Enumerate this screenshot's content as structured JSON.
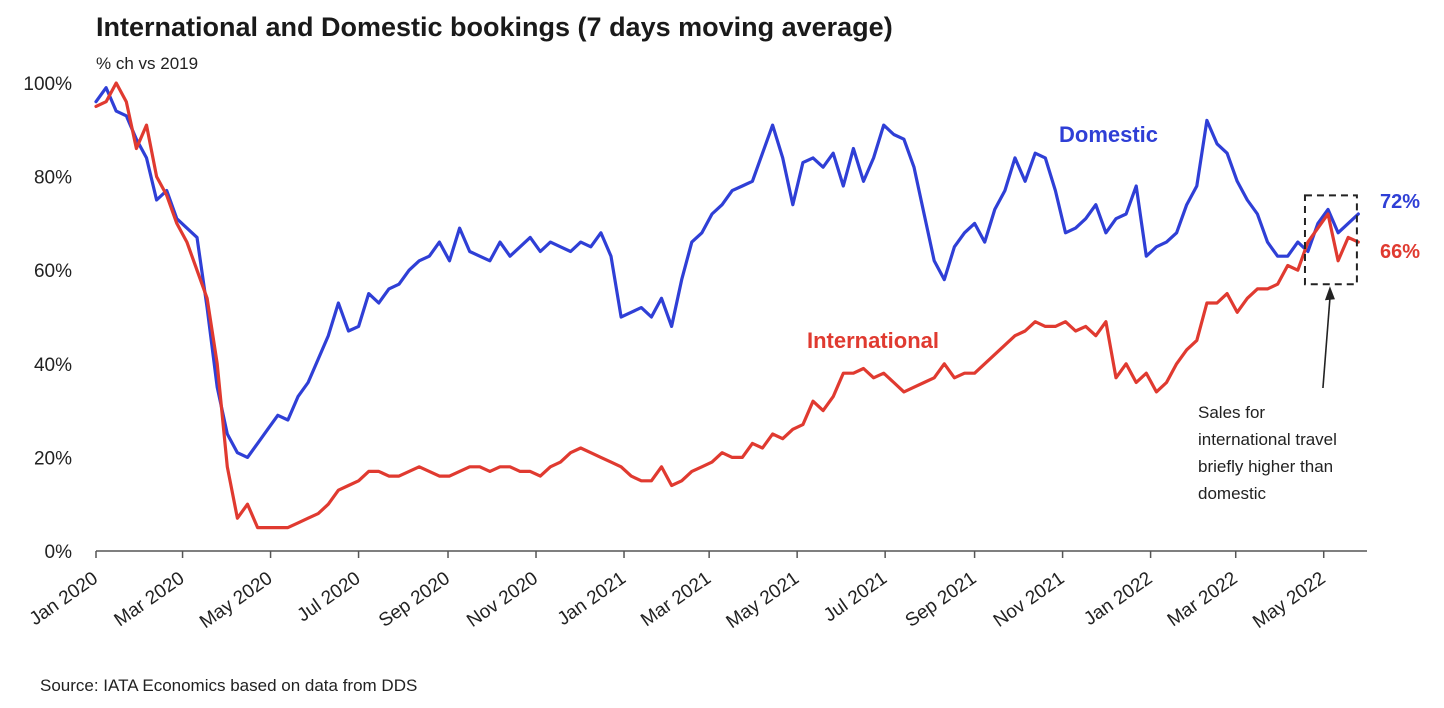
{
  "chart_title": "International and Domestic bookings (7 days moving average)",
  "chart_subtitle": "% ch vs 2019",
  "source_note": "Source: IATA Economics based on data from DDS",
  "colors": {
    "domestic": "#2f3fd6",
    "international": "#e03a30",
    "axis": "#555555"
  },
  "chart_data": {
    "type": "line",
    "title": "International and Domestic bookings (7 days moving average)",
    "ylabel": "% ch vs 2019",
    "ylim": [
      0,
      100
    ],
    "xlim": [
      "2020-01-01",
      "2022-05-31"
    ],
    "y_ticks": [
      0,
      20,
      40,
      60,
      80,
      100
    ],
    "y_tick_labels": [
      "0%",
      "20%",
      "40%",
      "60%",
      "80%",
      "100%"
    ],
    "x_ticks": [
      "2020-01-01",
      "2020-03-01",
      "2020-05-01",
      "2020-07-01",
      "2020-09-01",
      "2020-11-01",
      "2021-01-01",
      "2021-03-01",
      "2021-05-01",
      "2021-07-01",
      "2021-09-01",
      "2021-11-01",
      "2022-01-01",
      "2022-03-01",
      "2022-05-01"
    ],
    "x_tick_labels": [
      "Jan 2020",
      "Mar 2020",
      "May 2020",
      "Jul 2020",
      "Sep 2020",
      "Nov 2020",
      "Jan 2021",
      "Mar 2021",
      "May 2021",
      "Jul 2021",
      "Sep 2021",
      "Nov 2021",
      "Jan 2022",
      "Mar 2022",
      "May 2022"
    ],
    "grid": false,
    "series": [
      {
        "name": "Domestic",
        "end_label": "72%",
        "points": [
          [
            "2020-01-01",
            96
          ],
          [
            "2020-01-08",
            99
          ],
          [
            "2020-01-15",
            94
          ],
          [
            "2020-01-22",
            93
          ],
          [
            "2020-01-29",
            88
          ],
          [
            "2020-02-05",
            84
          ],
          [
            "2020-02-12",
            75
          ],
          [
            "2020-02-19",
            77
          ],
          [
            "2020-02-26",
            71
          ],
          [
            "2020-03-04",
            69
          ],
          [
            "2020-03-11",
            67
          ],
          [
            "2020-03-18",
            52
          ],
          [
            "2020-03-25",
            35
          ],
          [
            "2020-04-01",
            25
          ],
          [
            "2020-04-08",
            21
          ],
          [
            "2020-04-15",
            20
          ],
          [
            "2020-04-22",
            23
          ],
          [
            "2020-04-29",
            26
          ],
          [
            "2020-05-06",
            29
          ],
          [
            "2020-05-13",
            28
          ],
          [
            "2020-05-20",
            33
          ],
          [
            "2020-05-27",
            36
          ],
          [
            "2020-06-03",
            41
          ],
          [
            "2020-06-10",
            46
          ],
          [
            "2020-06-17",
            53
          ],
          [
            "2020-06-24",
            47
          ],
          [
            "2020-07-01",
            48
          ],
          [
            "2020-07-08",
            55
          ],
          [
            "2020-07-15",
            53
          ],
          [
            "2020-07-22",
            56
          ],
          [
            "2020-07-29",
            57
          ],
          [
            "2020-08-05",
            60
          ],
          [
            "2020-08-12",
            62
          ],
          [
            "2020-08-19",
            63
          ],
          [
            "2020-08-26",
            66
          ],
          [
            "2020-09-02",
            62
          ],
          [
            "2020-09-09",
            69
          ],
          [
            "2020-09-16",
            64
          ],
          [
            "2020-09-23",
            63
          ],
          [
            "2020-09-30",
            62
          ],
          [
            "2020-10-07",
            66
          ],
          [
            "2020-10-14",
            63
          ],
          [
            "2020-10-21",
            65
          ],
          [
            "2020-10-28",
            67
          ],
          [
            "2020-11-04",
            64
          ],
          [
            "2020-11-11",
            66
          ],
          [
            "2020-11-18",
            65
          ],
          [
            "2020-11-25",
            64
          ],
          [
            "2020-12-02",
            66
          ],
          [
            "2020-12-09",
            65
          ],
          [
            "2020-12-16",
            68
          ],
          [
            "2020-12-23",
            63
          ],
          [
            "2020-12-30",
            50
          ],
          [
            "2021-01-06",
            51
          ],
          [
            "2021-01-13",
            52
          ],
          [
            "2021-01-20",
            50
          ],
          [
            "2021-01-27",
            54
          ],
          [
            "2021-02-03",
            48
          ],
          [
            "2021-02-10",
            58
          ],
          [
            "2021-02-17",
            66
          ],
          [
            "2021-02-24",
            68
          ],
          [
            "2021-03-03",
            72
          ],
          [
            "2021-03-10",
            74
          ],
          [
            "2021-03-17",
            77
          ],
          [
            "2021-03-24",
            78
          ],
          [
            "2021-03-31",
            79
          ],
          [
            "2021-04-07",
            85
          ],
          [
            "2021-04-14",
            91
          ],
          [
            "2021-04-21",
            84
          ],
          [
            "2021-04-28",
            74
          ],
          [
            "2021-05-05",
            83
          ],
          [
            "2021-05-12",
            84
          ],
          [
            "2021-05-19",
            82
          ],
          [
            "2021-05-26",
            85
          ],
          [
            "2021-06-02",
            78
          ],
          [
            "2021-06-09",
            86
          ],
          [
            "2021-06-16",
            79
          ],
          [
            "2021-06-23",
            84
          ],
          [
            "2021-06-30",
            91
          ],
          [
            "2021-07-07",
            89
          ],
          [
            "2021-07-14",
            88
          ],
          [
            "2021-07-21",
            82
          ],
          [
            "2021-07-28",
            72
          ],
          [
            "2021-08-04",
            62
          ],
          [
            "2021-08-11",
            58
          ],
          [
            "2021-08-18",
            65
          ],
          [
            "2021-08-25",
            68
          ],
          [
            "2021-09-01",
            70
          ],
          [
            "2021-09-08",
            66
          ],
          [
            "2021-09-15",
            73
          ],
          [
            "2021-09-22",
            77
          ],
          [
            "2021-09-29",
            84
          ],
          [
            "2021-10-06",
            79
          ],
          [
            "2021-10-13",
            85
          ],
          [
            "2021-10-20",
            84
          ],
          [
            "2021-10-27",
            77
          ],
          [
            "2021-11-03",
            68
          ],
          [
            "2021-11-10",
            69
          ],
          [
            "2021-11-17",
            71
          ],
          [
            "2021-11-24",
            74
          ],
          [
            "2021-12-01",
            68
          ],
          [
            "2021-12-08",
            71
          ],
          [
            "2021-12-15",
            72
          ],
          [
            "2021-12-22",
            78
          ],
          [
            "2021-12-29",
            63
          ],
          [
            "2022-01-05",
            65
          ],
          [
            "2022-01-12",
            66
          ],
          [
            "2022-01-19",
            68
          ],
          [
            "2022-01-26",
            74
          ],
          [
            "2022-02-02",
            78
          ],
          [
            "2022-02-09",
            92
          ],
          [
            "2022-02-16",
            87
          ],
          [
            "2022-02-23",
            85
          ],
          [
            "2022-03-02",
            79
          ],
          [
            "2022-03-09",
            75
          ],
          [
            "2022-03-16",
            72
          ],
          [
            "2022-03-23",
            66
          ],
          [
            "2022-03-30",
            63
          ],
          [
            "2022-04-06",
            63
          ],
          [
            "2022-04-13",
            66
          ],
          [
            "2022-04-20",
            64
          ],
          [
            "2022-04-27",
            70
          ],
          [
            "2022-05-04",
            73
          ],
          [
            "2022-05-11",
            68
          ],
          [
            "2022-05-18",
            70
          ],
          [
            "2022-05-25",
            72
          ]
        ]
      },
      {
        "name": "International",
        "end_label": "66%",
        "points": [
          [
            "2020-01-01",
            95
          ],
          [
            "2020-01-08",
            96
          ],
          [
            "2020-01-15",
            100
          ],
          [
            "2020-01-22",
            96
          ],
          [
            "2020-01-29",
            86
          ],
          [
            "2020-02-05",
            91
          ],
          [
            "2020-02-12",
            80
          ],
          [
            "2020-02-19",
            76
          ],
          [
            "2020-02-26",
            70
          ],
          [
            "2020-03-04",
            66
          ],
          [
            "2020-03-11",
            60
          ],
          [
            "2020-03-18",
            54
          ],
          [
            "2020-03-25",
            40
          ],
          [
            "2020-04-01",
            18
          ],
          [
            "2020-04-08",
            7
          ],
          [
            "2020-04-15",
            10
          ],
          [
            "2020-04-22",
            5
          ],
          [
            "2020-04-29",
            5
          ],
          [
            "2020-05-06",
            5
          ],
          [
            "2020-05-13",
            5
          ],
          [
            "2020-05-20",
            6
          ],
          [
            "2020-05-27",
            7
          ],
          [
            "2020-06-03",
            8
          ],
          [
            "2020-06-10",
            10
          ],
          [
            "2020-06-17",
            13
          ],
          [
            "2020-06-24",
            14
          ],
          [
            "2020-07-01",
            15
          ],
          [
            "2020-07-08",
            17
          ],
          [
            "2020-07-15",
            17
          ],
          [
            "2020-07-22",
            16
          ],
          [
            "2020-07-29",
            16
          ],
          [
            "2020-08-05",
            17
          ],
          [
            "2020-08-12",
            18
          ],
          [
            "2020-08-19",
            17
          ],
          [
            "2020-08-26",
            16
          ],
          [
            "2020-09-02",
            16
          ],
          [
            "2020-09-09",
            17
          ],
          [
            "2020-09-16",
            18
          ],
          [
            "2020-09-23",
            18
          ],
          [
            "2020-09-30",
            17
          ],
          [
            "2020-10-07",
            18
          ],
          [
            "2020-10-14",
            18
          ],
          [
            "2020-10-21",
            17
          ],
          [
            "2020-10-28",
            17
          ],
          [
            "2020-11-04",
            16
          ],
          [
            "2020-11-11",
            18
          ],
          [
            "2020-11-18",
            19
          ],
          [
            "2020-11-25",
            21
          ],
          [
            "2020-12-02",
            22
          ],
          [
            "2020-12-09",
            21
          ],
          [
            "2020-12-16",
            20
          ],
          [
            "2020-12-23",
            19
          ],
          [
            "2020-12-30",
            18
          ],
          [
            "2021-01-06",
            16
          ],
          [
            "2021-01-13",
            15
          ],
          [
            "2021-01-20",
            15
          ],
          [
            "2021-01-27",
            18
          ],
          [
            "2021-02-03",
            14
          ],
          [
            "2021-02-10",
            15
          ],
          [
            "2021-02-17",
            17
          ],
          [
            "2021-02-24",
            18
          ],
          [
            "2021-03-03",
            19
          ],
          [
            "2021-03-10",
            21
          ],
          [
            "2021-03-17",
            20
          ],
          [
            "2021-03-24",
            20
          ],
          [
            "2021-03-31",
            23
          ],
          [
            "2021-04-07",
            22
          ],
          [
            "2021-04-14",
            25
          ],
          [
            "2021-04-21",
            24
          ],
          [
            "2021-04-28",
            26
          ],
          [
            "2021-05-05",
            27
          ],
          [
            "2021-05-12",
            32
          ],
          [
            "2021-05-19",
            30
          ],
          [
            "2021-05-26",
            33
          ],
          [
            "2021-06-02",
            38
          ],
          [
            "2021-06-09",
            38
          ],
          [
            "2021-06-16",
            39
          ],
          [
            "2021-06-23",
            37
          ],
          [
            "2021-06-30",
            38
          ],
          [
            "2021-07-07",
            36
          ],
          [
            "2021-07-14",
            34
          ],
          [
            "2021-07-21",
            35
          ],
          [
            "2021-07-28",
            36
          ],
          [
            "2021-08-04",
            37
          ],
          [
            "2021-08-11",
            40
          ],
          [
            "2021-08-18",
            37
          ],
          [
            "2021-08-25",
            38
          ],
          [
            "2021-09-01",
            38
          ],
          [
            "2021-09-08",
            40
          ],
          [
            "2021-09-15",
            42
          ],
          [
            "2021-09-22",
            44
          ],
          [
            "2021-09-29",
            46
          ],
          [
            "2021-10-06",
            47
          ],
          [
            "2021-10-13",
            49
          ],
          [
            "2021-10-20",
            48
          ],
          [
            "2021-10-27",
            48
          ],
          [
            "2021-11-03",
            49
          ],
          [
            "2021-11-10",
            47
          ],
          [
            "2021-11-17",
            48
          ],
          [
            "2021-11-24",
            46
          ],
          [
            "2021-12-01",
            49
          ],
          [
            "2021-12-08",
            37
          ],
          [
            "2021-12-15",
            40
          ],
          [
            "2021-12-22",
            36
          ],
          [
            "2021-12-29",
            38
          ],
          [
            "2022-01-05",
            34
          ],
          [
            "2022-01-12",
            36
          ],
          [
            "2022-01-19",
            40
          ],
          [
            "2022-01-26",
            43
          ],
          [
            "2022-02-02",
            45
          ],
          [
            "2022-02-09",
            53
          ],
          [
            "2022-02-16",
            53
          ],
          [
            "2022-02-23",
            55
          ],
          [
            "2022-03-02",
            51
          ],
          [
            "2022-03-09",
            54
          ],
          [
            "2022-03-16",
            56
          ],
          [
            "2022-03-23",
            56
          ],
          [
            "2022-03-30",
            57
          ],
          [
            "2022-04-06",
            61
          ],
          [
            "2022-04-13",
            60
          ],
          [
            "2022-04-20",
            66
          ],
          [
            "2022-04-27",
            69
          ],
          [
            "2022-05-04",
            72
          ],
          [
            "2022-05-11",
            62
          ],
          [
            "2022-05-18",
            67
          ],
          [
            "2022-05-25",
            66
          ]
        ]
      }
    ],
    "annotations": {
      "domestic_label": "Domestic",
      "international_label": "International",
      "note_lines": [
        "Sales for",
        "international travel",
        "briefly higher than",
        "domestic"
      ],
      "highlight_box_dates": [
        "2022-04-18",
        "2022-05-24"
      ],
      "highlight_box_values": [
        57,
        76
      ]
    }
  }
}
